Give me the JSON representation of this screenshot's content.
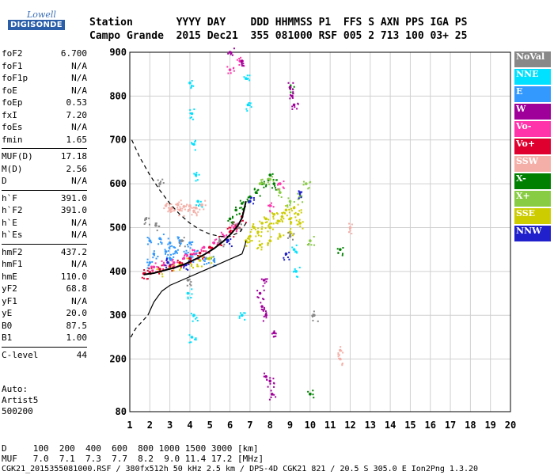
{
  "header": {
    "line1": "Station       YYYY DAY    DDD HHMMSS P1  FFS S AXN PPS IGA PS",
    "line2": "Campo Grande  2015 Dec21  355 081000 RSF 005 2 713 100 03+ 25"
  },
  "logo": {
    "line1": "Lowell",
    "line2": "DIGISONDE"
  },
  "params": [
    {
      "name": "foF2",
      "value": "6.700"
    },
    {
      "name": "foF1",
      "value": "N/A"
    },
    {
      "name": "foF1p",
      "value": "N/A"
    },
    {
      "name": "foE",
      "value": "N/A"
    },
    {
      "name": "foEp",
      "value": "0.53"
    },
    {
      "name": "fxI",
      "value": "7.20"
    },
    {
      "name": "foEs",
      "value": "N/A"
    },
    {
      "name": "fmin",
      "value": "1.65"
    },
    {
      "name": "MUF(D)",
      "value": "17.18",
      "sep": true
    },
    {
      "name": "M(D)",
      "value": "2.56"
    },
    {
      "name": "D",
      "value": "N/A"
    },
    {
      "name": "h`F",
      "value": "391.0",
      "sep": true
    },
    {
      "name": "h`F2",
      "value": "391.0"
    },
    {
      "name": "h`E",
      "value": "N/A"
    },
    {
      "name": "h`Es",
      "value": "N/A"
    },
    {
      "name": "hmF2",
      "value": "437.2",
      "sep": true
    },
    {
      "name": "hmF1",
      "value": "N/A"
    },
    {
      "name": "hmE",
      "value": "110.0"
    },
    {
      "name": "yF2",
      "value": "68.8"
    },
    {
      "name": "yF1",
      "value": "N/A"
    },
    {
      "name": "yE",
      "value": "20.0"
    },
    {
      "name": "B0",
      "value": "87.5"
    },
    {
      "name": "B1",
      "value": "1.00"
    },
    {
      "name": "C-level",
      "value": "44",
      "sep": true
    }
  ],
  "auto": {
    "line1": "Auto:",
    "line2": "Artist5",
    "line3": "500200"
  },
  "legend": [
    {
      "label": "NoVal",
      "color": "#888888"
    },
    {
      "label": "NNE",
      "color": "#00e0ff"
    },
    {
      "label": "E",
      "color": "#3399ff"
    },
    {
      "label": "W",
      "color": "#a0009a"
    },
    {
      "label": "Vo-",
      "color": "#ff33aa"
    },
    {
      "label": "Vo+",
      "color": "#e00030"
    },
    {
      "label": "SSW",
      "color": "#f4b0a8"
    },
    {
      "label": "X-",
      "color": "#008000"
    },
    {
      "label": "X+",
      "color": "#88cc44"
    },
    {
      "label": "SSE",
      "color": "#cccc00"
    },
    {
      "label": "NNW",
      "color": "#2020cc"
    }
  ],
  "footer": {
    "d_row": "D     100  200  400  600  800 1000 1500 3000 [km]",
    "muf_row": "MUF   7.0  7.1  7.3  7.7  8.2  9.0 11.4 17.2 [MHz]",
    "info": "CGK21_2015355081000.RSF / 380fx512h 50 kHz 2.5 km / DPS-4D CGK21 821 / 20.5 S 305.0 E Ion2Png 1.3.20"
  },
  "chart_data": {
    "type": "scatter",
    "xlabel": "",
    "ylabel": "",
    "xlim": [
      1,
      20
    ],
    "ylim": [
      80,
      900
    ],
    "xticks": [
      1,
      2,
      3,
      4,
      5,
      6,
      7,
      8,
      9,
      10,
      11,
      12,
      13,
      14,
      15,
      16,
      17,
      18,
      19,
      20
    ],
    "yticks": [
      80,
      200,
      300,
      400,
      500,
      600,
      700,
      800,
      900
    ],
    "grid": true,
    "series": [
      {
        "name": "E",
        "color": "#3399ff",
        "points": [
          [
            2.0,
            470
          ],
          [
            2.5,
            475
          ],
          [
            3.0,
            465
          ],
          [
            3.5,
            470
          ],
          [
            4.0,
            465
          ],
          [
            2.2,
            440
          ],
          [
            2.8,
            445
          ],
          [
            3.3,
            445
          ],
          [
            3.8,
            440
          ],
          [
            4.3,
            440
          ],
          [
            4.8,
            430
          ],
          [
            5.2,
            425
          ],
          [
            2.0,
            420
          ],
          [
            3.0,
            430
          ],
          [
            4.0,
            425
          ]
        ]
      },
      {
        "name": "SSE",
        "color": "#cccc00",
        "points": [
          [
            6.8,
            470
          ],
          [
            7.0,
            480
          ],
          [
            7.2,
            500
          ],
          [
            7.4,
            490
          ],
          [
            7.6,
            510
          ],
          [
            7.8,
            520
          ],
          [
            8.0,
            500
          ],
          [
            8.2,
            530
          ],
          [
            8.4,
            515
          ],
          [
            8.6,
            525
          ],
          [
            8.8,
            540
          ],
          [
            9.0,
            520
          ],
          [
            9.2,
            545
          ],
          [
            9.4,
            530
          ],
          [
            7.5,
            460
          ],
          [
            8.0,
            470
          ],
          [
            8.5,
            480
          ],
          [
            9.0,
            490
          ],
          [
            9.5,
            510
          ],
          [
            2.5,
            400
          ],
          [
            3.0,
            410
          ],
          [
            3.5,
            415
          ],
          [
            4.0,
            420
          ],
          [
            4.5,
            425
          ],
          [
            5.0,
            430
          ]
        ]
      },
      {
        "name": "SSW",
        "color": "#f4b0a8",
        "points": [
          [
            2.8,
            550
          ],
          [
            3.1,
            545
          ],
          [
            3.4,
            552
          ],
          [
            3.7,
            548
          ],
          [
            4.0,
            550
          ],
          [
            4.3,
            545
          ],
          [
            4.6,
            552
          ],
          [
            3.0,
            540
          ],
          [
            3.5,
            540
          ],
          [
            4.2,
            538
          ],
          [
            11.5,
            200
          ],
          [
            11.5,
            220
          ],
          [
            12.0,
            500
          ]
        ]
      },
      {
        "name": "Vo+",
        "color": "#e00030",
        "points": [
          [
            1.7,
            395
          ],
          [
            2.0,
            398
          ],
          [
            2.5,
            405
          ],
          [
            3.0,
            412
          ],
          [
            3.5,
            420
          ],
          [
            4.0,
            430
          ],
          [
            4.5,
            442
          ],
          [
            5.0,
            455
          ],
          [
            5.5,
            470
          ],
          [
            6.0,
            490
          ],
          [
            6.3,
            505
          ],
          [
            6.6,
            525
          ]
        ]
      },
      {
        "name": "Vo-",
        "color": "#ff33aa",
        "points": [
          [
            2.2,
            410
          ],
          [
            2.7,
            415
          ],
          [
            3.2,
            420
          ],
          [
            3.7,
            430
          ],
          [
            4.2,
            440
          ],
          [
            4.7,
            455
          ],
          [
            5.2,
            465
          ],
          [
            5.7,
            480
          ],
          [
            6.2,
            500
          ],
          [
            8.0,
            550
          ],
          [
            8.5,
            600
          ],
          [
            6.5,
            880
          ],
          [
            6.0,
            860
          ]
        ]
      },
      {
        "name": "X-",
        "color": "#008000",
        "points": [
          [
            6.0,
            520
          ],
          [
            6.3,
            540
          ],
          [
            6.6,
            555
          ],
          [
            7.0,
            570
          ],
          [
            7.3,
            580
          ],
          [
            7.6,
            600
          ],
          [
            8.0,
            620
          ],
          [
            8.2,
            600
          ],
          [
            9.0,
            820
          ],
          [
            10.0,
            120
          ],
          [
            11.5,
            450
          ]
        ]
      },
      {
        "name": "X+",
        "color": "#88cc44",
        "points": [
          [
            7.5,
            600
          ],
          [
            8.0,
            610
          ],
          [
            8.5,
            580
          ],
          [
            9.0,
            560
          ],
          [
            9.5,
            570
          ],
          [
            10.0,
            470
          ],
          [
            9.8,
            600
          ]
        ]
      },
      {
        "name": "W",
        "color": "#a0009a",
        "points": [
          [
            7.5,
            350
          ],
          [
            7.6,
            320
          ],
          [
            7.7,
            380
          ],
          [
            7.8,
            300
          ],
          [
            8.0,
            150
          ],
          [
            8.1,
            120
          ],
          [
            8.2,
            260
          ],
          [
            9.0,
            820
          ],
          [
            9.1,
            800
          ],
          [
            9.2,
            780
          ],
          [
            6.6,
            880
          ],
          [
            6.0,
            900
          ],
          [
            7.8,
            160
          ]
        ]
      },
      {
        "name": "NNE",
        "color": "#00e0ff",
        "points": [
          [
            4.0,
            830
          ],
          [
            4.1,
            760
          ],
          [
            4.2,
            690
          ],
          [
            4.3,
            620
          ],
          [
            4.4,
            560
          ],
          [
            4.2,
            300
          ],
          [
            4.1,
            250
          ],
          [
            3.9,
            350
          ],
          [
            6.8,
            840
          ],
          [
            6.9,
            780
          ],
          [
            6.6,
            300
          ],
          [
            9.2,
            450
          ],
          [
            9.3,
            400
          ]
        ]
      },
      {
        "name": "NoVal",
        "color": "#888888",
        "points": [
          [
            1.8,
            520
          ],
          [
            2.3,
            505
          ],
          [
            3.6,
            470
          ],
          [
            5.5,
            470
          ],
          [
            6.4,
            500
          ],
          [
            9.0,
            480
          ],
          [
            10.2,
            300
          ],
          [
            2.5,
            600
          ],
          [
            3.9,
            380
          ]
        ]
      },
      {
        "name": "NNW",
        "color": "#2020cc",
        "points": [
          [
            2.9,
            420
          ],
          [
            3.8,
            415
          ],
          [
            5.9,
            470
          ],
          [
            7.0,
            560
          ],
          [
            8.8,
            440
          ],
          [
            9.5,
            580
          ]
        ]
      }
    ],
    "trace_solid": [
      [
        1.7,
        393
      ],
      [
        2.2,
        396
      ],
      [
        2.7,
        402
      ],
      [
        3.2,
        408
      ],
      [
        3.7,
        416
      ],
      [
        4.2,
        426
      ],
      [
        4.7,
        438
      ],
      [
        5.2,
        452
      ],
      [
        5.7,
        470
      ],
      [
        6.1,
        488
      ],
      [
        6.4,
        505
      ],
      [
        6.6,
        522
      ],
      [
        6.7,
        540
      ],
      [
        6.8,
        560
      ]
    ],
    "profile_solid": [
      [
        1.9,
        300
      ],
      [
        2.2,
        330
      ],
      [
        2.6,
        355
      ],
      [
        3.0,
        368
      ],
      [
        3.5,
        378
      ],
      [
        4.0,
        388
      ],
      [
        4.5,
        398
      ],
      [
        5.0,
        408
      ],
      [
        5.5,
        418
      ],
      [
        6.0,
        428
      ],
      [
        6.4,
        436
      ],
      [
        6.6,
        440
      ],
      [
        6.75,
        460
      ],
      [
        6.8,
        470
      ]
    ],
    "profile_dashed_lower": [
      [
        1.05,
        250
      ],
      [
        1.3,
        270
      ],
      [
        1.6,
        285
      ],
      [
        1.9,
        300
      ]
    ],
    "profile_dashed_upper": [
      [
        1.1,
        700
      ],
      [
        1.5,
        660
      ],
      [
        2.0,
        620
      ],
      [
        2.5,
        585
      ],
      [
        3.0,
        555
      ],
      [
        3.5,
        530
      ],
      [
        4.0,
        510
      ],
      [
        4.5,
        495
      ],
      [
        5.0,
        485
      ],
      [
        5.5,
        480
      ],
      [
        6.0,
        480
      ],
      [
        6.5,
        490
      ],
      [
        6.8,
        510
      ]
    ]
  }
}
